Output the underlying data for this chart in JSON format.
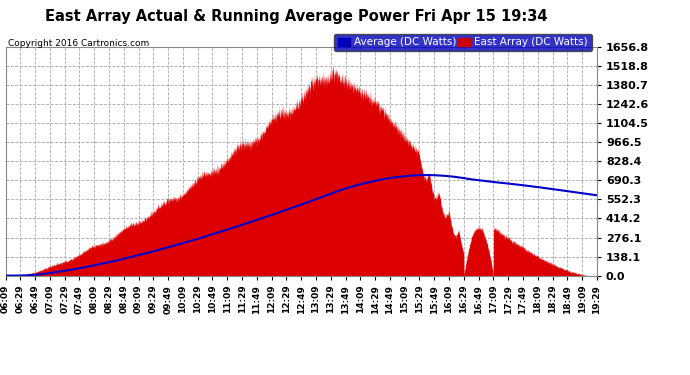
{
  "title": "East Array Actual & Running Average Power Fri Apr 15 19:34",
  "copyright": "Copyright 2016 Cartronics.com",
  "legend_avg": "Average (DC Watts)",
  "legend_east": "East Array (DC Watts)",
  "fill_color": "#dd0000",
  "line_color": "#0000cc",
  "plot_bg_color": "#ffffff",
  "fig_bg_color": "#ffffff",
  "grid_color": "#aaaaaa",
  "ytick_labels": [
    "0.0",
    "138.1",
    "276.1",
    "414.2",
    "552.3",
    "690.3",
    "828.4",
    "966.5",
    "1104.5",
    "1242.6",
    "1380.7",
    "1518.8",
    "1656.8"
  ],
  "ytick_vals": [
    0.0,
    138.1,
    276.1,
    414.2,
    552.3,
    690.3,
    828.4,
    966.5,
    1104.5,
    1242.6,
    1380.7,
    1518.8,
    1656.8
  ],
  "ymax": 1656.8,
  "ymin": 0.0,
  "xtick_labels": [
    "06:09",
    "06:29",
    "06:49",
    "07:09",
    "07:29",
    "07:49",
    "08:09",
    "08:29",
    "08:49",
    "09:09",
    "09:29",
    "09:49",
    "10:09",
    "10:29",
    "10:49",
    "11:09",
    "11:29",
    "11:49",
    "12:09",
    "12:29",
    "12:49",
    "13:09",
    "13:29",
    "13:49",
    "14:09",
    "14:29",
    "14:49",
    "15:09",
    "15:29",
    "15:49",
    "16:09",
    "16:29",
    "16:49",
    "17:09",
    "17:29",
    "17:49",
    "18:09",
    "18:29",
    "18:49",
    "19:09",
    "19:29"
  ]
}
